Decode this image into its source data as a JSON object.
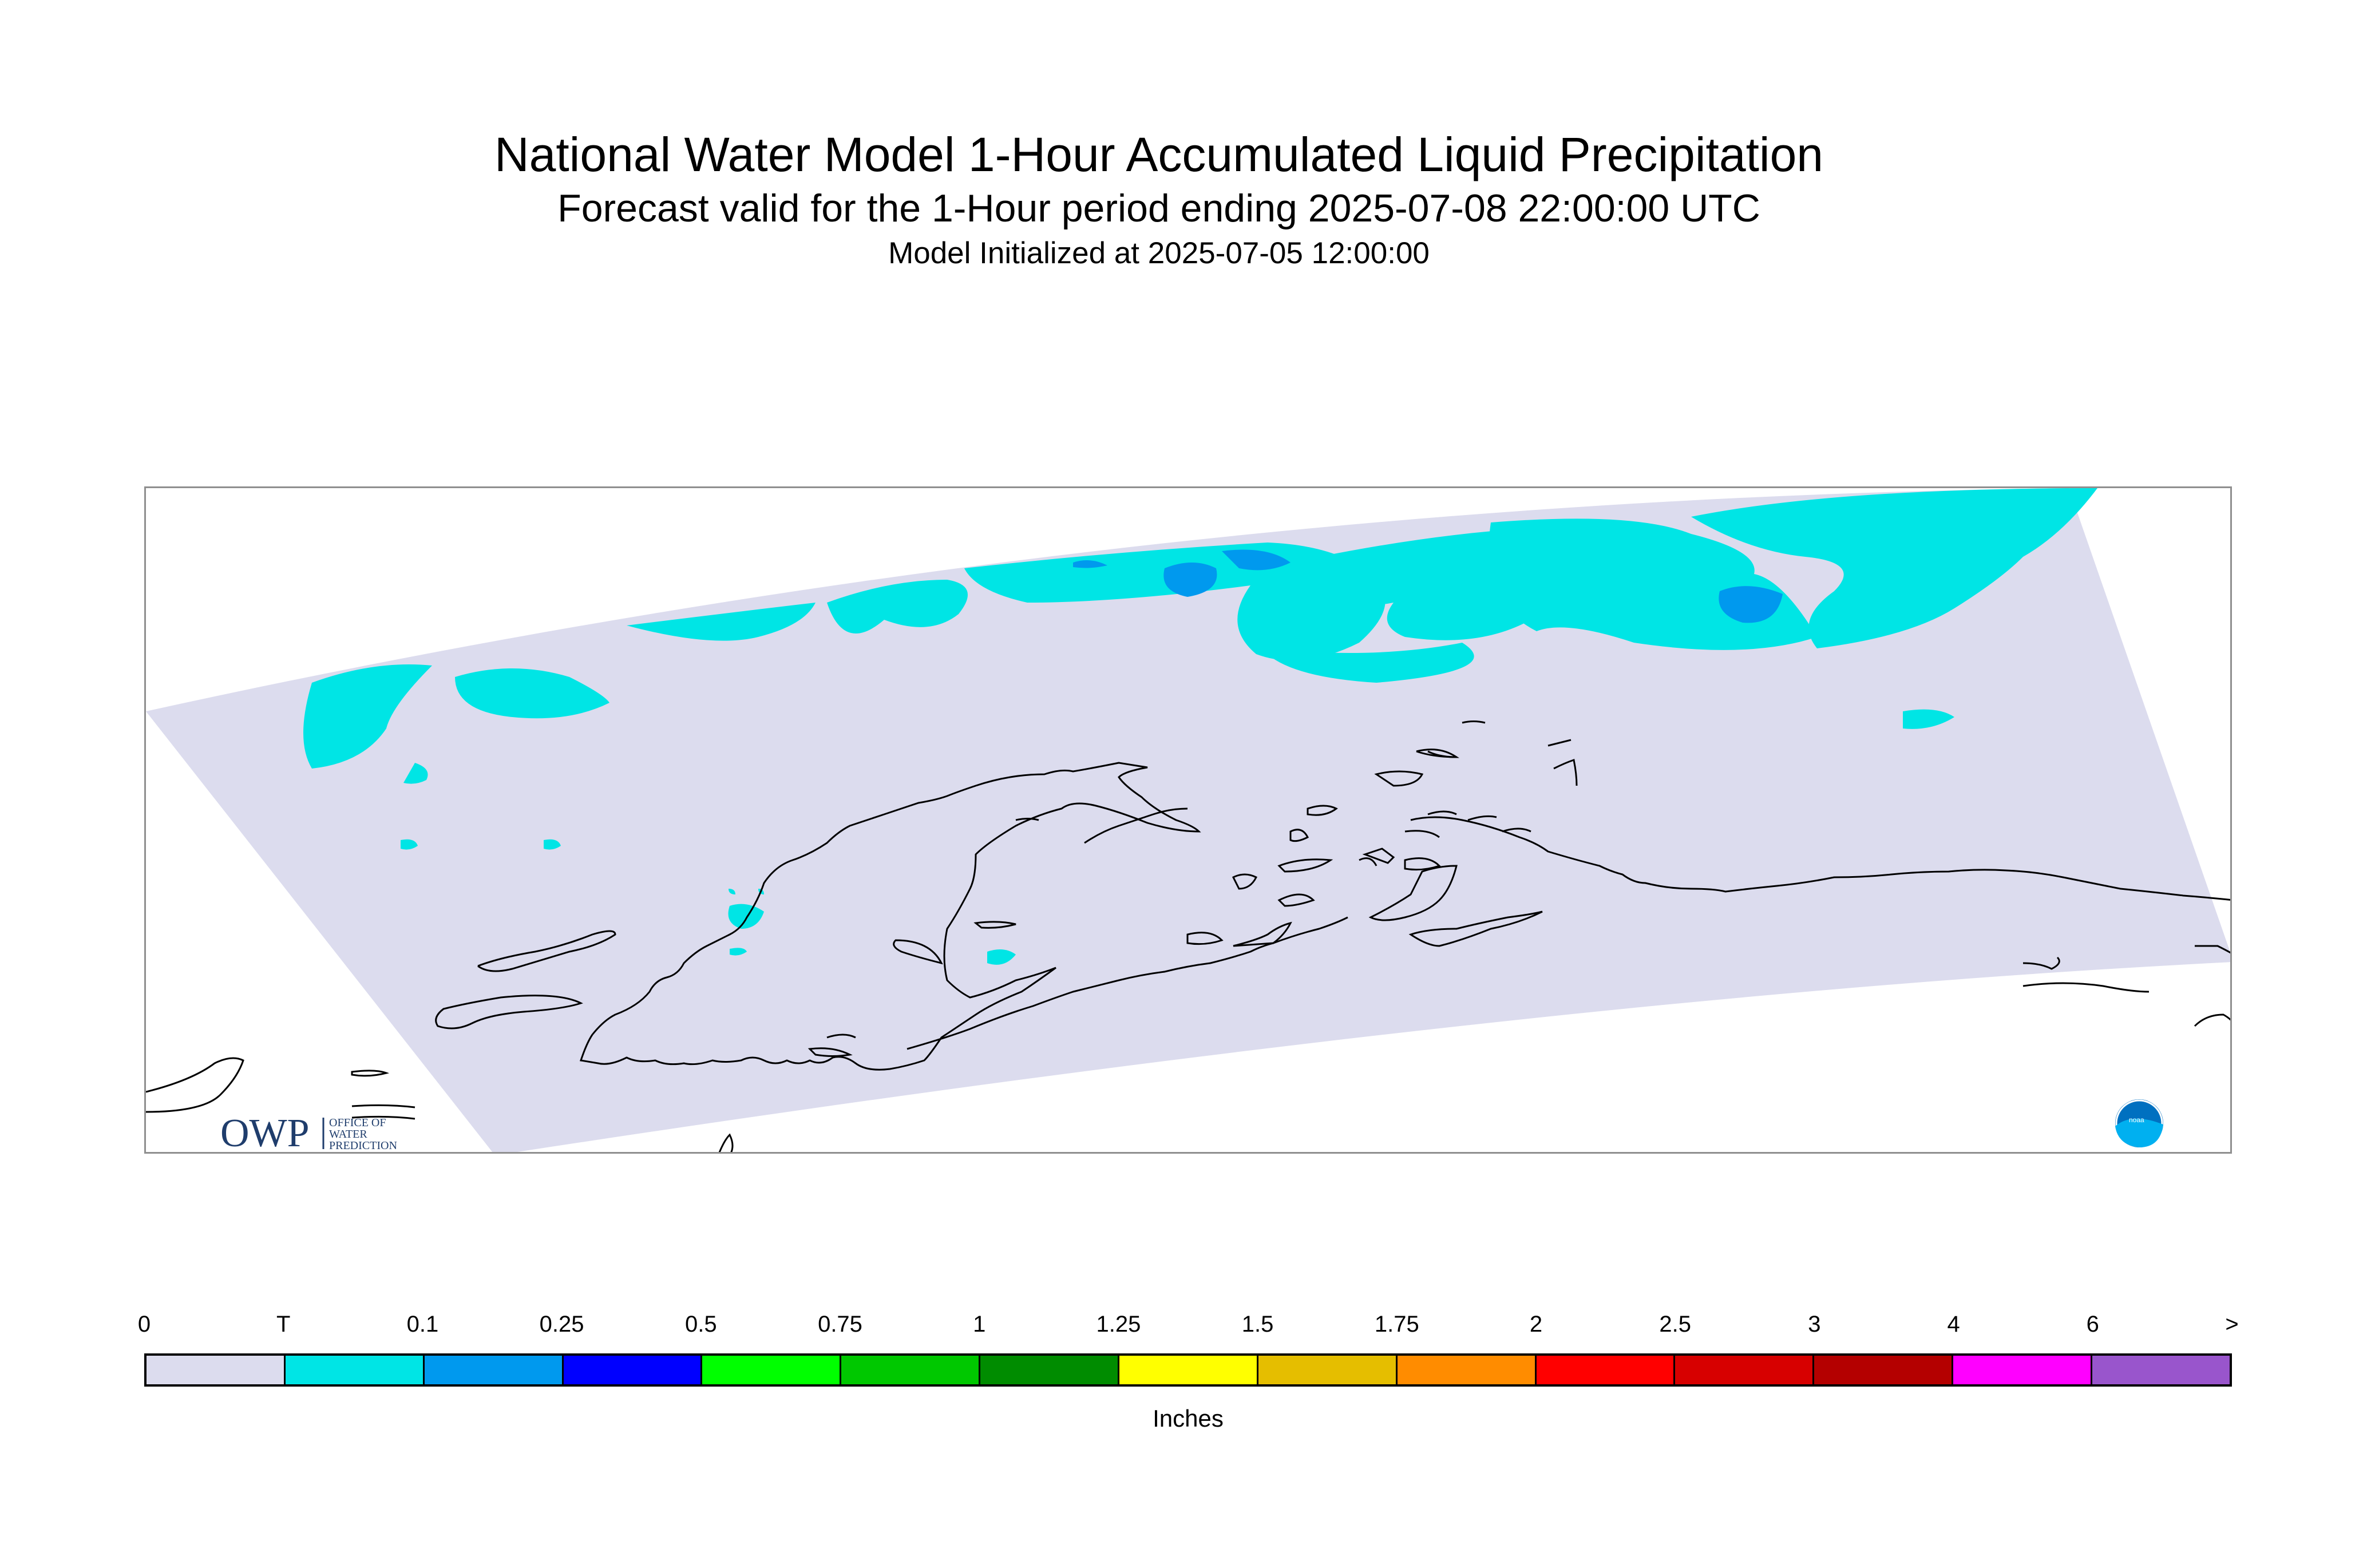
{
  "header": {
    "title": "National Water Model 1-Hour Accumulated Liquid Precipitation",
    "subtitle": "Forecast valid for the 1-Hour period ending 2025-07-08 22:00:00 UTC",
    "initialized": "Model Initialized at 2025-07-05 12:00:00"
  },
  "map": {
    "domain_fill": "#dcdcee",
    "precip_fill_trace": "#00e5e5",
    "precip_fill_light": "#0099ee",
    "coastline_color": "#000000"
  },
  "logos": {
    "owp_wordmark": "OWP",
    "owp_text_lines": [
      "OFFICE OF",
      "WATER",
      "PREDICTION"
    ],
    "noaa": "noaa-logo-icon"
  },
  "colorbar": {
    "labels": [
      "0",
      "T",
      "0.1",
      "0.25",
      "0.5",
      "0.75",
      "1",
      "1.25",
      "1.5",
      "1.75",
      "2",
      "2.5",
      "3",
      "4",
      "6",
      ">"
    ],
    "colors": [
      "#dcdcee",
      "#00e5e5",
      "#0099ee",
      "#0000ff",
      "#00ff00",
      "#00c800",
      "#008c00",
      "#ffff00",
      "#e5be00",
      "#ff8c00",
      "#ff0000",
      "#d70000",
      "#b40000",
      "#ff00ff",
      "#9955cc"
    ],
    "units": "Inches"
  }
}
